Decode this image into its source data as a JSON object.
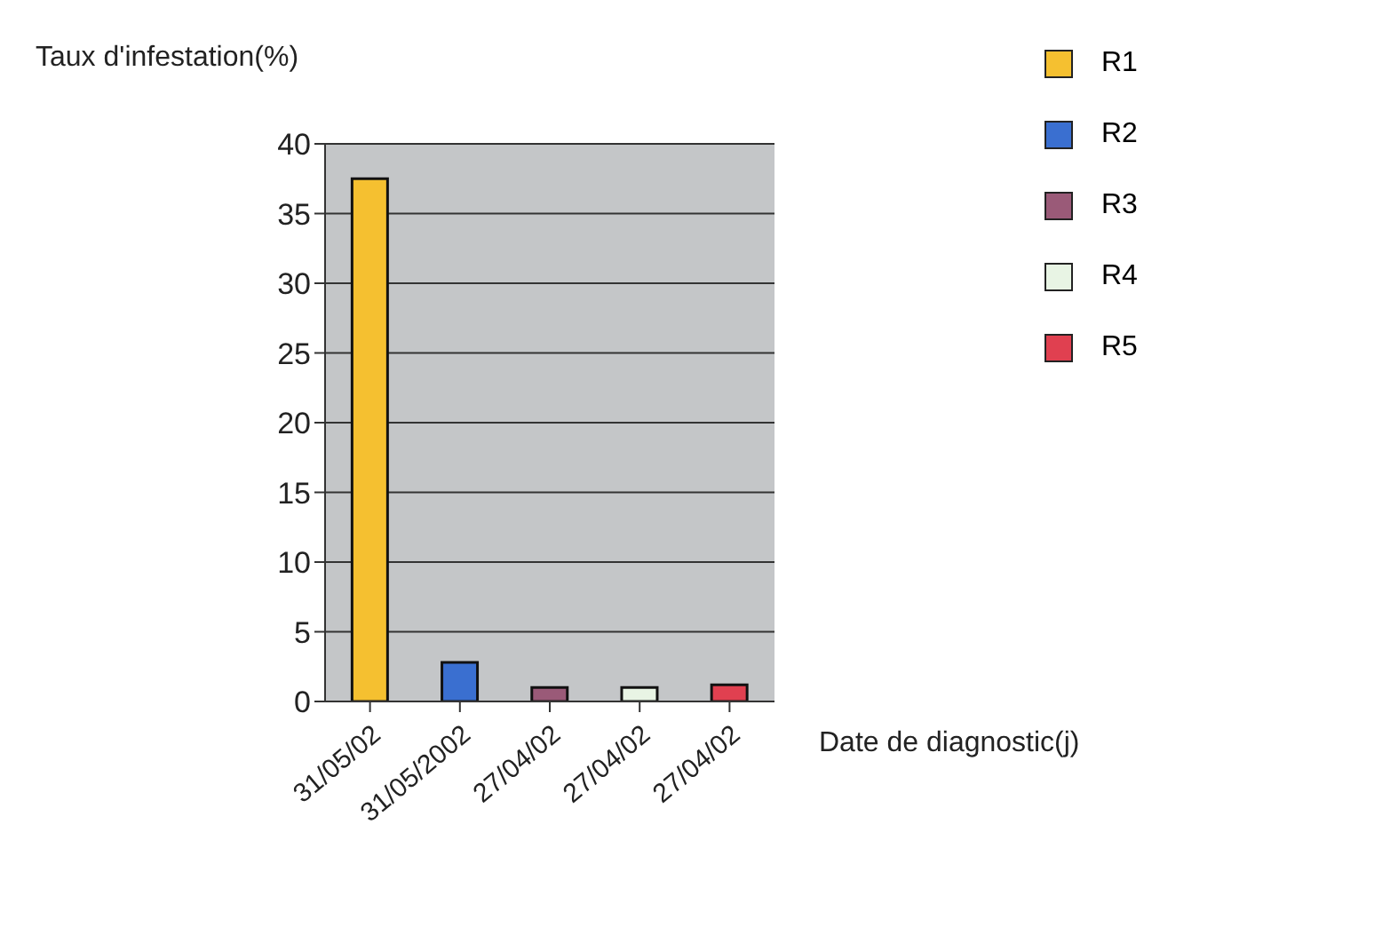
{
  "chart_data": {
    "type": "bar",
    "ylabel": "Taux d'infestation(%)",
    "xlabel": "Date de diagnostic(j)",
    "categories": [
      "31/05/02",
      "31/05/2002",
      "27/04/02",
      "27/04/02",
      "27/04/02"
    ],
    "series": [
      {
        "name": "R1",
        "color": "#f5c030",
        "values": [
          37.5,
          null,
          null,
          null,
          null
        ]
      },
      {
        "name": "R2",
        "color": "#3a6fd0",
        "values": [
          null,
          2.8,
          null,
          null,
          null
        ]
      },
      {
        "name": "R3",
        "color": "#9a5a78",
        "values": [
          null,
          null,
          1,
          null,
          null
        ]
      },
      {
        "name": "R4",
        "color": "#e8f4e4",
        "values": [
          null,
          null,
          null,
          1,
          null
        ]
      },
      {
        "name": "R5",
        "color": "#e04050",
        "values": [
          null,
          null,
          null,
          null,
          1.2
        ]
      }
    ],
    "ylim": [
      0,
      40
    ],
    "yticks": [
      0,
      5,
      10,
      15,
      20,
      25,
      30,
      35,
      40
    ],
    "grid": "y",
    "legend": "right"
  }
}
